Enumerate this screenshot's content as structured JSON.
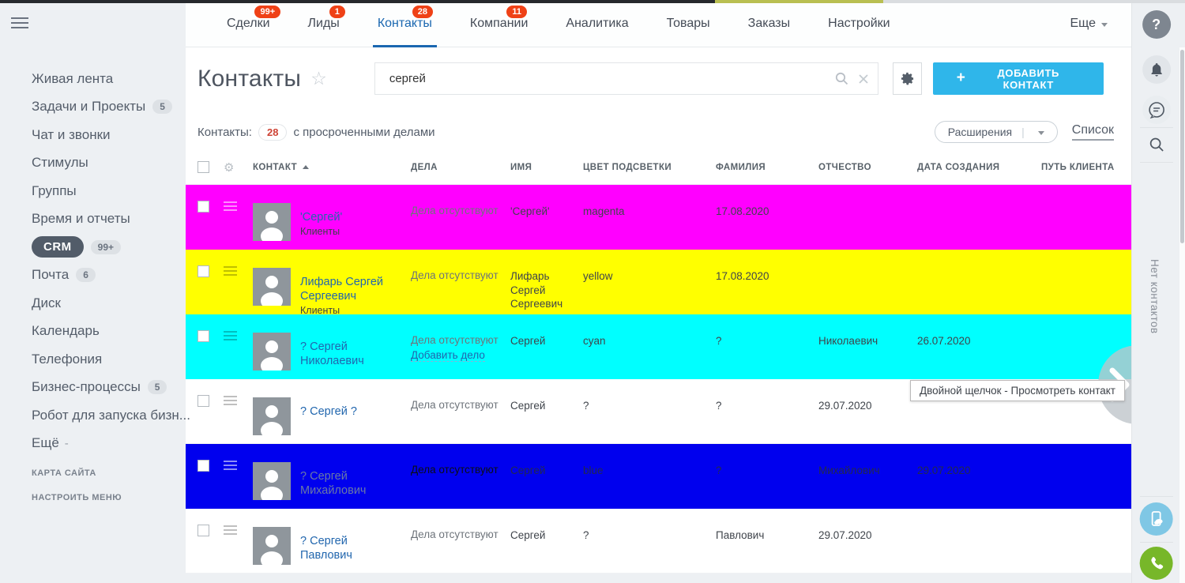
{
  "topnav": {
    "tabs": [
      {
        "label": "Сделки",
        "badge": "99+",
        "active": false
      },
      {
        "label": "Лиды",
        "badge": "1",
        "active": false
      },
      {
        "label": "Контакты",
        "badge": "28",
        "active": true
      },
      {
        "label": "Компании",
        "badge": "11",
        "active": false
      },
      {
        "label": "Аналитика",
        "badge": "",
        "active": false
      },
      {
        "label": "Товары",
        "badge": "",
        "active": false
      },
      {
        "label": "Заказы",
        "badge": "",
        "active": false
      },
      {
        "label": "Настройки",
        "badge": "",
        "active": false
      }
    ],
    "more_label": "Еще"
  },
  "sidebar": {
    "items": [
      {
        "label": "Живая лента"
      },
      {
        "label": "Задачи и Проекты",
        "badge": "5"
      },
      {
        "label": "Чат и звонки"
      },
      {
        "label": "Стимулы"
      },
      {
        "label": "Группы"
      },
      {
        "label": "Время и отчеты"
      },
      {
        "label": "CRM",
        "badge": "99+",
        "pill": true
      },
      {
        "label": "Почта",
        "badge": "6"
      },
      {
        "label": "Диск"
      },
      {
        "label": "Календарь"
      },
      {
        "label": "Телефония"
      },
      {
        "label": "Бизнес-процессы",
        "badge": "5"
      },
      {
        "label": "Робот для запуска бизн..."
      },
      {
        "label": "Ещё",
        "suffix": "-"
      }
    ],
    "footer": [
      "КАРТА САЙТА",
      "НАСТРОИТЬ МЕНЮ"
    ]
  },
  "header": {
    "title": "Контакты",
    "search_value": "сергей",
    "add_button_label": "ДОБАВИТЬ КОНТАКТ",
    "add_plus": "+"
  },
  "subheader": {
    "counter_label": "Контакты:",
    "counter": "28",
    "counter_suffix": "с просроченными делами",
    "extensions_label": "Расширения",
    "view_label": "Список"
  },
  "table": {
    "columns": [
      "КОНТАКТ",
      "ДЕЛА",
      "ИМЯ",
      "ЦВЕТ ПОДСВЕТКИ",
      "ФАМИЛИЯ",
      "ОТЧЕСТВО",
      "ДАТА СОЗДАНИЯ",
      "ПУТЬ КЛИЕНТА"
    ],
    "rows": [
      {
        "name": "'Сергей'",
        "type": "Клиенты",
        "deals": "Дела отсутствуют",
        "add_deal": "",
        "first_name": "'Сергей'",
        "color_name": "magenta",
        "last_name": "",
        "middle_name": "",
        "created": "17.08.2020",
        "client_path": "",
        "row_color": "#ff00ff",
        "light_burger": true,
        "dark": false
      },
      {
        "name": "Лифарь Сергей Сергеевич",
        "type": "Клиенты",
        "deals": "Дела отсутствуют",
        "add_deal": "",
        "first_name": "Лифарь Сергей Сергеевич",
        "color_name": "yellow",
        "last_name": "",
        "middle_name": "",
        "created": "17.08.2020",
        "client_path": "",
        "row_color": "#ffff00",
        "light_burger": false,
        "dark": false
      },
      {
        "name": "? Сергей Николаевич",
        "type": "",
        "deals": "Дела отсутствуют",
        "add_deal": "Добавить дело",
        "first_name": "Сергей",
        "color_name": "cyan",
        "last_name": "?",
        "middle_name": "Николаевич",
        "created": "26.07.2020",
        "client_path": "",
        "row_color": "#00ffff",
        "light_burger": false,
        "dark": false
      },
      {
        "name": "? Сергей ?",
        "type": "",
        "deals": "Дела отсутствуют",
        "add_deal": "",
        "first_name": "Сергей",
        "color_name": "",
        "last_name": "?",
        "middle_name": "?",
        "created": "29.07.2020",
        "client_path": "",
        "row_color": "#ffffff",
        "light_burger": false,
        "dark": false
      },
      {
        "name": "? Сергей Михайлович",
        "type": "",
        "deals": "Дела отсутствуют",
        "add_deal": "",
        "first_name": "Сергей",
        "color_name": "blue",
        "last_name": "?",
        "middle_name": "Михайлович",
        "created": "29.07.2020",
        "client_path": "",
        "row_color": "#0000ee",
        "light_burger": true,
        "dark": true
      },
      {
        "name": "? Сергей Павлович",
        "type": "",
        "deals": "Дела отсутствуют",
        "add_deal": "",
        "first_name": "Сергей",
        "color_name": "",
        "last_name": "?",
        "middle_name": "Павлович",
        "created": "29.07.2020",
        "client_path": "",
        "row_color": "#ffffff",
        "light_burger": false,
        "dark": false
      }
    ]
  },
  "tooltip": "Двойной щелчок - Просмотреть контакт",
  "right_rail": {
    "empty_text": "Нет контактов"
  },
  "colors": {
    "accent_blue": "#1a67b0",
    "badge_red": "#ef4116",
    "button_cyan": "#2fb6ea",
    "row_magenta": "#ff00ff",
    "row_yellow": "#ffff00",
    "row_cyan": "#00ffff",
    "row_blue": "#0000ee",
    "call_green": "#77b729",
    "mobile_blue": "#7fc7e5"
  }
}
